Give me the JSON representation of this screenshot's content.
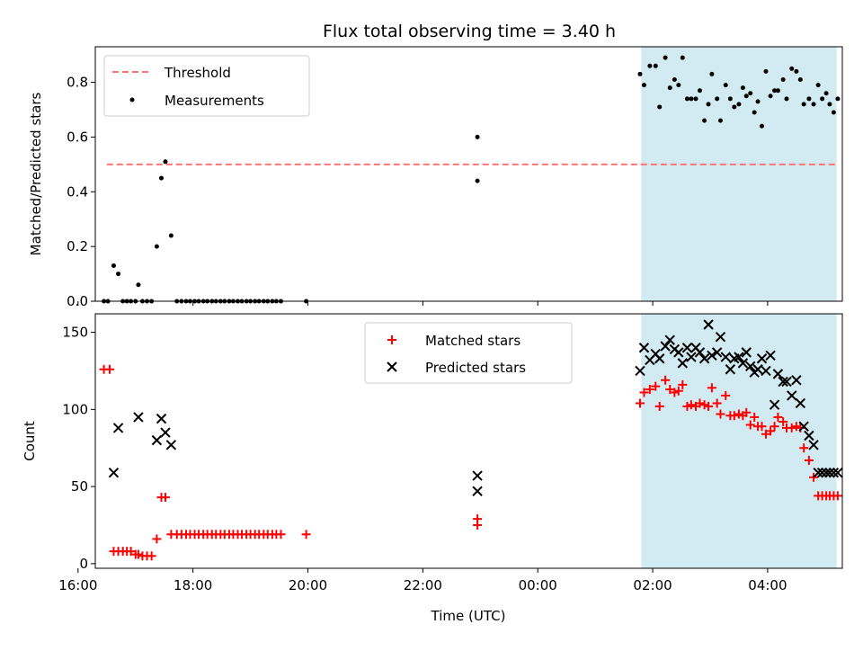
{
  "figure": {
    "title": "Flux total observing time = 3.40 h"
  },
  "colors": {
    "threshold": "#ff7373",
    "measurement": "#000000",
    "matched": "#ff0000",
    "predicted": "#000000",
    "shade": "#add8e6"
  },
  "chart_data": [
    {
      "type": "scatter",
      "ylabel": "Matched/Predicted stars",
      "xlim": [
        16.3,
        29.3
      ],
      "ylim": [
        0,
        0.93
      ],
      "yticks": [
        0.0,
        0.2,
        0.4,
        0.6,
        0.8
      ],
      "ytick_labels": [
        "0.0",
        "0.2",
        "0.4",
        "0.6",
        "0.8"
      ],
      "shaded_span": [
        25.8,
        29.2
      ],
      "legend": {
        "placement": "top-left",
        "entries": [
          "Threshold",
          "Measurements"
        ]
      },
      "threshold": {
        "name": "Threshold",
        "y": 0.5,
        "x_range": [
          16.5,
          29.2
        ]
      },
      "series": [
        {
          "name": "Measurements",
          "x": [
            16.45,
            16.52,
            16.62,
            16.7,
            16.78,
            16.85,
            16.92,
            17.0,
            17.05,
            17.12,
            17.2,
            17.28,
            17.37,
            17.45,
            17.52,
            17.62,
            17.72,
            17.8,
            17.88,
            17.95,
            18.03,
            18.1,
            18.18,
            18.25,
            18.33,
            18.4,
            18.48,
            18.55,
            18.63,
            18.7,
            18.78,
            18.85,
            18.93,
            19.0,
            19.08,
            19.15,
            19.23,
            19.3,
            19.38,
            19.45,
            19.53,
            19.97,
            22.95,
            22.95,
            25.78,
            25.85,
            25.95,
            26.05,
            26.12,
            26.22,
            26.3,
            26.38,
            26.45,
            26.52,
            26.6,
            26.67,
            26.75,
            26.82,
            26.9,
            26.97,
            27.03,
            27.12,
            27.18,
            27.27,
            27.35,
            27.42,
            27.5,
            27.57,
            27.63,
            27.7,
            27.77,
            27.83,
            27.9,
            27.97,
            28.05,
            28.12,
            28.18,
            28.27,
            28.33,
            28.42,
            28.5,
            28.57,
            28.63,
            28.72,
            28.8,
            28.88,
            28.95,
            29.02,
            29.08,
            29.15,
            29.22
          ],
          "y": [
            0.0,
            0.0,
            0.13,
            0.1,
            0.0,
            0.0,
            0.0,
            0.0,
            0.06,
            0.0,
            0.0,
            0.0,
            0.2,
            0.45,
            0.51,
            0.24,
            0.0,
            0.0,
            0.0,
            0.0,
            0.0,
            0.0,
            0.0,
            0.0,
            0.0,
            0.0,
            0.0,
            0.0,
            0.0,
            0.0,
            0.0,
            0.0,
            0.0,
            0.0,
            0.0,
            0.0,
            0.0,
            0.0,
            0.0,
            0.0,
            0.0,
            0.0,
            0.6,
            0.44,
            0.83,
            0.79,
            0.86,
            0.86,
            0.71,
            0.89,
            0.78,
            0.81,
            0.79,
            0.89,
            0.74,
            0.74,
            0.74,
            0.77,
            0.66,
            0.72,
            0.83,
            0.74,
            0.66,
            0.79,
            0.74,
            0.71,
            0.72,
            0.78,
            0.75,
            0.76,
            0.69,
            0.73,
            0.64,
            0.84,
            0.75,
            0.77,
            0.77,
            0.81,
            0.74,
            0.85,
            0.84,
            0.81,
            0.72,
            0.74,
            0.72,
            0.79,
            0.74,
            0.76,
            0.72,
            0.69,
            0.74
          ]
        }
      ]
    },
    {
      "type": "scatter",
      "xlabel": "Time (UTC)",
      "ylabel": "Count",
      "xlim": [
        16.3,
        29.3
      ],
      "ylim": [
        -3,
        162
      ],
      "xticks": [
        16,
        18,
        20,
        22,
        24,
        26,
        28
      ],
      "xtick_labels": [
        "16:00",
        "18:00",
        "20:00",
        "22:00",
        "00:00",
        "02:00",
        "04:00"
      ],
      "yticks": [
        0,
        50,
        100,
        150
      ],
      "ytick_labels": [
        "0",
        "50",
        "100",
        "150"
      ],
      "shaded_span": [
        25.8,
        29.2
      ],
      "legend": {
        "placement": "upper-center",
        "entries": [
          "Matched stars",
          "Predicted stars"
        ]
      },
      "series": [
        {
          "name": "Matched stars",
          "marker": "plus",
          "x": [
            16.45,
            16.55,
            16.62,
            16.7,
            16.78,
            16.85,
            16.92,
            17.0,
            17.05,
            17.12,
            17.2,
            17.28,
            17.37,
            17.45,
            17.52,
            17.62,
            17.72,
            17.8,
            17.88,
            17.95,
            18.03,
            18.1,
            18.18,
            18.25,
            18.33,
            18.4,
            18.48,
            18.55,
            18.63,
            18.7,
            18.78,
            18.85,
            18.93,
            19.0,
            19.08,
            19.15,
            19.23,
            19.3,
            19.38,
            19.45,
            19.53,
            19.97,
            22.95,
            22.95,
            25.78,
            25.85,
            25.95,
            26.05,
            26.12,
            26.22,
            26.3,
            26.38,
            26.45,
            26.52,
            26.6,
            26.67,
            26.75,
            26.82,
            26.9,
            26.97,
            27.03,
            27.12,
            27.18,
            27.27,
            27.35,
            27.42,
            27.5,
            27.57,
            27.63,
            27.7,
            27.77,
            27.83,
            27.9,
            27.97,
            28.05,
            28.12,
            28.18,
            28.27,
            28.33,
            28.42,
            28.5,
            28.57,
            28.63,
            28.72,
            28.8,
            28.88,
            28.95,
            29.02,
            29.08,
            29.15,
            29.22
          ],
          "y": [
            126,
            126,
            8,
            8,
            8,
            8,
            8,
            6,
            6,
            5,
            5,
            5,
            16,
            43,
            43,
            19,
            19,
            19,
            19,
            19,
            19,
            19,
            19,
            19,
            19,
            19,
            19,
            19,
            19,
            19,
            19,
            19,
            19,
            19,
            19,
            19,
            19,
            19,
            19,
            19,
            19,
            19,
            29,
            25,
            104,
            111,
            113,
            115,
            102,
            119,
            113,
            111,
            112,
            116,
            102,
            103,
            102,
            104,
            103,
            102,
            114,
            104,
            97,
            109,
            96,
            96,
            97,
            96,
            98,
            90,
            95,
            89,
            89,
            84,
            86,
            89,
            95,
            92,
            88,
            88,
            89,
            88,
            75,
            67,
            56,
            44,
            44,
            44,
            44,
            44,
            44
          ]
        },
        {
          "name": "Predicted stars",
          "marker": "x",
          "x": [
            16.62,
            16.7,
            17.05,
            17.37,
            17.45,
            17.52,
            17.62,
            22.95,
            22.95,
            25.78,
            25.85,
            25.95,
            26.05,
            26.12,
            26.22,
            26.3,
            26.38,
            26.45,
            26.52,
            26.6,
            26.67,
            26.75,
            26.82,
            26.9,
            26.97,
            27.03,
            27.12,
            27.18,
            27.27,
            27.35,
            27.42,
            27.5,
            27.57,
            27.63,
            27.7,
            27.77,
            27.83,
            27.9,
            27.97,
            28.05,
            28.12,
            28.18,
            28.27,
            28.33,
            28.42,
            28.5,
            28.57,
            28.63,
            28.72,
            28.8,
            28.88,
            28.95,
            29.02,
            29.08,
            29.15,
            29.22
          ],
          "y": [
            59,
            88,
            95,
            80,
            94,
            85,
            77,
            57,
            47,
            125,
            140,
            132,
            136,
            133,
            141,
            145,
            139,
            137,
            130,
            140,
            134,
            140,
            137,
            133,
            155,
            135,
            137,
            147,
            134,
            126,
            133,
            134,
            130,
            137,
            128,
            124,
            126,
            133,
            125,
            135,
            103,
            123,
            118,
            118,
            109,
            119,
            104,
            89,
            83,
            77,
            59,
            59,
            59,
            59,
            59,
            59
          ]
        }
      ]
    }
  ]
}
